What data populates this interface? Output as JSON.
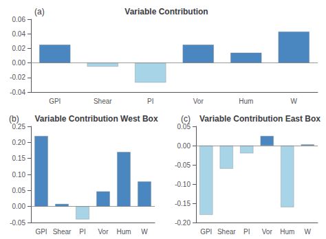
{
  "chart_data": [
    {
      "type": "bar",
      "title": "Variable Contribution",
      "annotation": "(a)",
      "categories": [
        "GPI",
        "Shear",
        "PI",
        "Vor",
        "Hum",
        "W"
      ],
      "values": [
        0.025,
        -0.005,
        -0.027,
        0.025,
        0.014,
        0.043
      ],
      "colors": [
        "#4a86c0",
        "#a8d4e8",
        "#a8d4e8",
        "#4a86c0",
        "#4a86c0",
        "#4a86c0"
      ],
      "ylim": [
        -0.04,
        0.06
      ],
      "yticks": [
        -0.04,
        -0.02,
        {
          "value": 0,
          "label": "0.00"
        },
        0.02,
        0.04,
        0.06
      ],
      "grid": false
    },
    {
      "type": "bar",
      "title": "Variable Contribution West Box",
      "annotation": "(b)",
      "categories": [
        "GPI",
        "Shear",
        "PI",
        "Vor",
        "Hum",
        "W"
      ],
      "values": [
        0.22,
        0.008,
        -0.04,
        0.047,
        0.17,
        0.078
      ],
      "colors": [
        "#4a86c0",
        "#4a86c0",
        "#a8d4e8",
        "#4a86c0",
        "#4a86c0",
        "#4a86c0"
      ],
      "ylim": [
        -0.05,
        0.25
      ],
      "yticks": [
        -0.05,
        {
          "value": 0,
          "label": "0.00"
        },
        0.05,
        {
          "value": 0.1,
          "label": "0.10"
        },
        0.15,
        {
          "value": 0.2,
          "label": "0.20"
        },
        0.25
      ],
      "grid": false
    },
    {
      "type": "bar",
      "title": "Variable Contribution East Box",
      "annotation": "(c)",
      "categories": [
        "GPI",
        "Shear",
        "PI",
        "Vor",
        "Hum",
        "W"
      ],
      "values": [
        -0.18,
        -0.06,
        -0.02,
        0.025,
        -0.16,
        0.003
      ],
      "colors": [
        "#a8d4e8",
        "#a8d4e8",
        "#a8d4e8",
        "#4a86c0",
        "#a8d4e8",
        "#4a86c0"
      ],
      "ylim": [
        -0.2,
        0.05
      ],
      "yticks": [
        {
          "value": -0.2,
          "label": "-0.20"
        },
        -0.15,
        {
          "value": -0.1,
          "label": "-0.10"
        },
        -0.05,
        {
          "value": 0,
          "label": "0.00"
        },
        0.05
      ],
      "grid": false
    }
  ]
}
